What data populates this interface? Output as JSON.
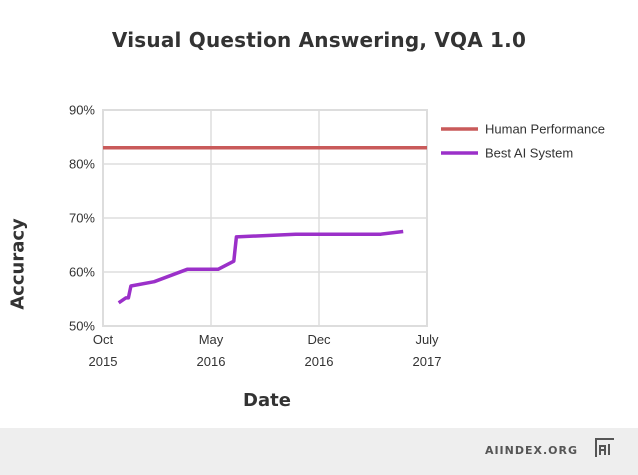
{
  "chart_data": {
    "type": "line",
    "title": "Visual Question Answering, VQA 1.0",
    "xlabel": "Date",
    "ylabel": "Accuracy",
    "ylim": [
      50,
      90
    ],
    "yticks": [
      "50%",
      "60%",
      "70%",
      "80%",
      "90%"
    ],
    "xlim": [
      "2015-10-01",
      "2017-07-01"
    ],
    "xticks": [
      {
        "line1": "Oct",
        "line2": "2015"
      },
      {
        "line1": "May",
        "line2": "2016"
      },
      {
        "line1": "Dec",
        "line2": "2016"
      },
      {
        "line1": "July",
        "line2": "2017"
      }
    ],
    "grid": true,
    "legend": "right",
    "series": [
      {
        "name": "Human Performance",
        "color": "#c95a5a",
        "points": [
          [
            "2015-10-01",
            83
          ],
          [
            "2017-07-01",
            83
          ]
        ]
      },
      {
        "name": "Best AI System",
        "color": "#9b30c9",
        "points": [
          [
            "2015-11-01",
            54.3
          ],
          [
            "2015-11-15",
            55.2
          ],
          [
            "2015-11-20",
            55.2
          ],
          [
            "2015-11-25",
            57.4
          ],
          [
            "2016-01-10",
            58.2
          ],
          [
            "2016-03-15",
            60.5
          ],
          [
            "2016-05-15",
            60.5
          ],
          [
            "2016-06-15",
            62.0
          ],
          [
            "2016-06-20",
            66.5
          ],
          [
            "2016-10-15",
            67.0
          ],
          [
            "2017-04-01",
            67.0
          ],
          [
            "2017-05-15",
            67.5
          ]
        ]
      }
    ]
  },
  "footer": {
    "brand": "AIINDEX.ORG",
    "logo_icon": "ai-logo-icon"
  }
}
